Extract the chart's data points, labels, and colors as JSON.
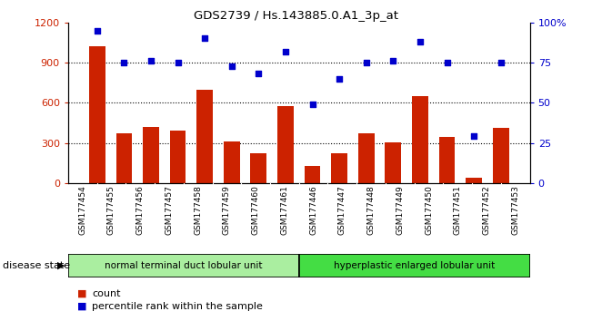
{
  "title": "GDS2739 / Hs.143885.0.A1_3p_at",
  "samples": [
    "GSM177454",
    "GSM177455",
    "GSM177456",
    "GSM177457",
    "GSM177458",
    "GSM177459",
    "GSM177460",
    "GSM177461",
    "GSM177446",
    "GSM177447",
    "GSM177448",
    "GSM177449",
    "GSM177450",
    "GSM177451",
    "GSM177452",
    "GSM177453"
  ],
  "counts": [
    1020,
    370,
    420,
    390,
    700,
    310,
    220,
    575,
    130,
    220,
    370,
    305,
    650,
    345,
    40,
    415
  ],
  "percentiles": [
    95,
    75,
    76,
    75,
    90,
    73,
    68,
    82,
    49,
    65,
    75,
    76,
    88,
    75,
    29,
    75
  ],
  "group1_label": "normal terminal duct lobular unit",
  "group1_count": 8,
  "group2_label": "hyperplastic enlarged lobular unit",
  "group2_count": 8,
  "disease_state_label": "disease state",
  "bar_color": "#CC2200",
  "dot_color": "#0000CC",
  "group1_color": "#AAEEA0",
  "group2_color": "#44DD44",
  "ylim_left": [
    0,
    1200
  ],
  "ylim_right": [
    0,
    100
  ],
  "yticks_left": [
    0,
    300,
    600,
    900,
    1200
  ],
  "ytick_labels_left": [
    "0",
    "300",
    "600",
    "900",
    "1200"
  ],
  "yticks_right": [
    0,
    25,
    50,
    75,
    100
  ],
  "ytick_labels_right": [
    "0",
    "25",
    "50",
    "75",
    "100%"
  ],
  "gridlines": [
    300,
    600,
    900
  ]
}
